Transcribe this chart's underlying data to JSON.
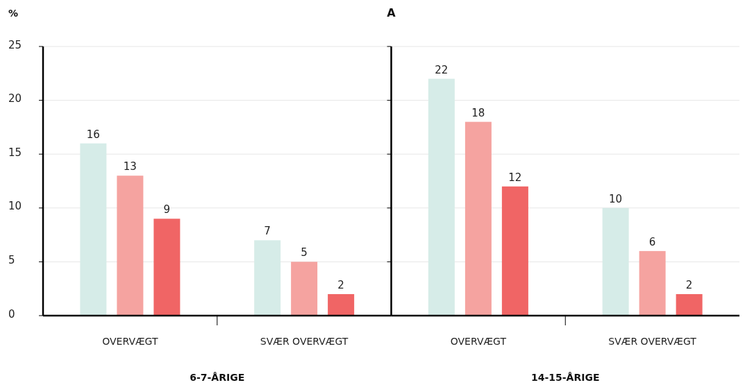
{
  "chart_data": [
    {
      "type": "bar",
      "title": "A",
      "ylabel": "%",
      "xlabel": "6-7-ÅRIGE",
      "categories": [
        "OVERVÆGT",
        "SVÆR OVERVÆGT"
      ],
      "series": [
        {
          "color": "#d6ece8",
          "values": [
            16,
            7
          ]
        },
        {
          "color": "#f5a3a0",
          "values": [
            13,
            5
          ]
        },
        {
          "color": "#f06565",
          "values": [
            9,
            2
          ]
        }
      ],
      "ylim": [
        0,
        25
      ],
      "yticks": [
        0,
        5,
        10,
        15,
        20,
        25
      ],
      "grid": "y",
      "data_labels": true
    },
    {
      "type": "bar",
      "xlabel": "14-15-ÅRIGE",
      "categories": [
        "OVERVÆGT",
        "SVÆR OVERVÆGT"
      ],
      "series": [
        {
          "color": "#d6ece8",
          "values": [
            22,
            10
          ]
        },
        {
          "color": "#f5a3a0",
          "values": [
            18,
            6
          ]
        },
        {
          "color": "#f06565",
          "values": [
            12,
            2
          ]
        }
      ],
      "ylim": [
        0,
        25
      ],
      "yticks": [
        0,
        5,
        10,
        15,
        20,
        25
      ],
      "grid": "y",
      "data_labels": true,
      "tick_labels": "x"
    }
  ]
}
